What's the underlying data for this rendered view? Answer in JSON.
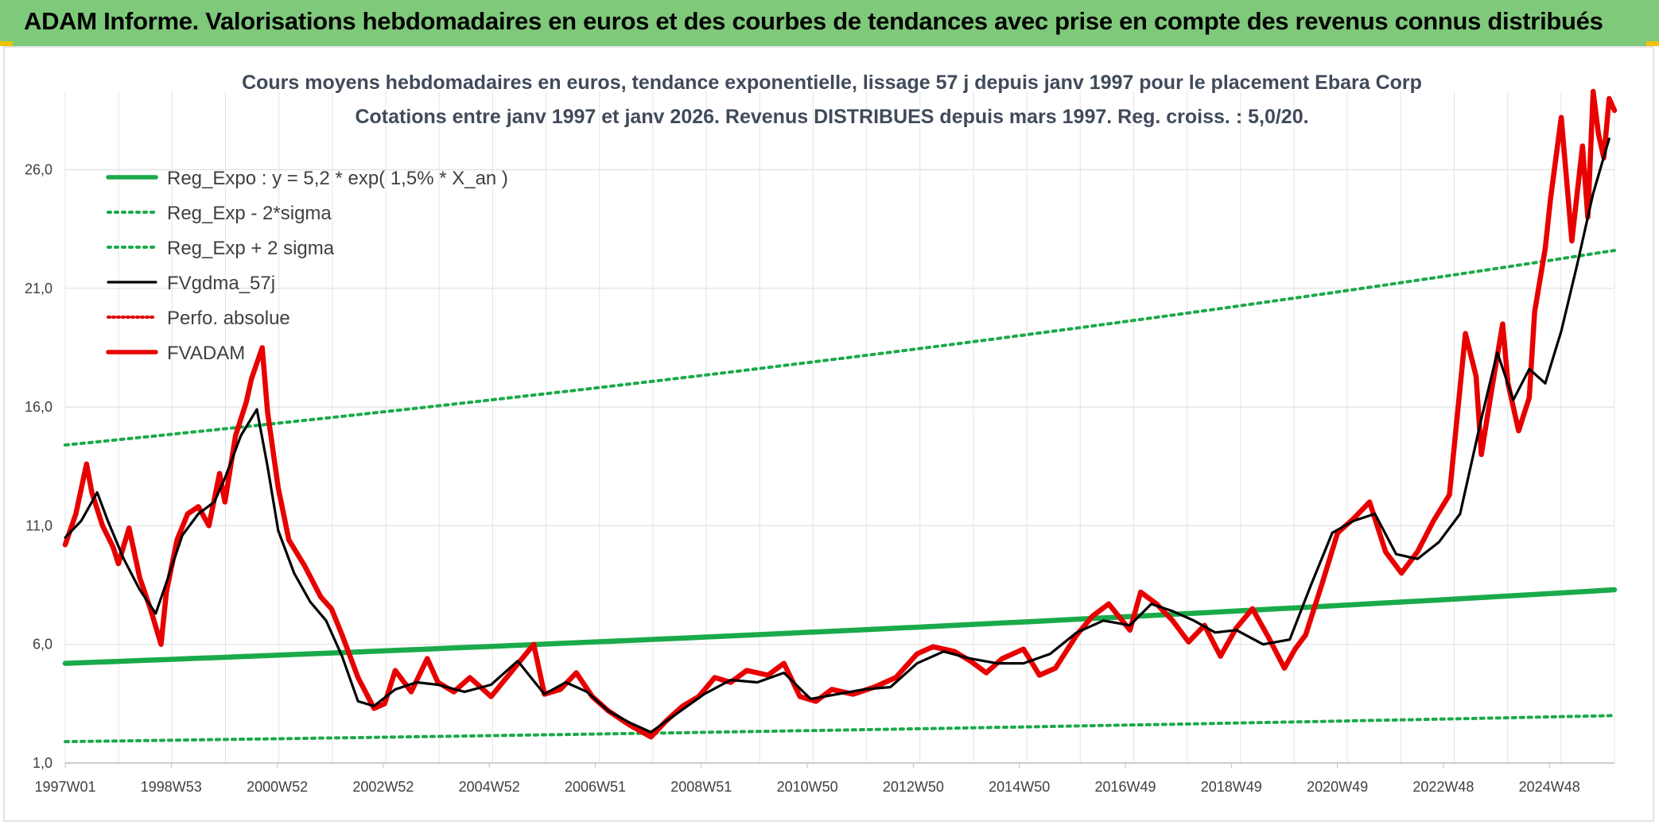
{
  "banner": {
    "text": "ADAM Informe. Valorisations hebdomadaires en euros et des courbes de tendances avec prise en compte des revenus connus distribués",
    "background": "#7fc97a"
  },
  "chart_data": {
    "type": "line",
    "title": "Cours moyens hebdomadaires en euros, tendance exponentielle, lissage 57 j depuis janv 1997 pour le placement Ebara Corp",
    "subtitle": "Cotations entre janv 1997 et janv 2026. Revenus DISTRIBUES depuis mars 1997. Reg. croiss. : 5,0/20.",
    "xlabel": "",
    "ylabel": "",
    "x_tick_labels": [
      "1997W01",
      "1998W53",
      "2000W52",
      "2002W52",
      "2004W52",
      "2006W51",
      "2008W51",
      "2010W50",
      "2012W50",
      "2014W50",
      "2016W49",
      "2018W49",
      "2020W49",
      "2022W48",
      "2024W48"
    ],
    "y_tick_labels": [
      "1,0",
      "6,0",
      "11,0",
      "16,0",
      "21,0",
      "26,0"
    ],
    "y_ticks": [
      1,
      6,
      11,
      16,
      21,
      26
    ],
    "xlim": [
      1997.0,
      2026.1
    ],
    "ylim": [
      1,
      29.3
    ],
    "grid": true,
    "legend_position": "top-left",
    "legend": [
      {
        "label": "Reg_Expo : y = 5,2 * exp( 1,5% *  X_an )",
        "color": "#1aaa4a",
        "style": "solid-thick"
      },
      {
        "label": "Reg_Exp - 2*sigma",
        "color": "#1aaa4a",
        "style": "dotted"
      },
      {
        "label": "Reg_Exp + 2 sigma",
        "color": "#1aaa4a",
        "style": "dotted"
      },
      {
        "label": "FVgdma_57j",
        "color": "#000000",
        "style": "solid"
      },
      {
        "label": "Perfo. absolue",
        "color": "#e00000",
        "style": "dotted"
      },
      {
        "label": "FVADAM",
        "color": "#e80000",
        "style": "solid-thick"
      }
    ],
    "series": [
      {
        "name": "Reg_Expo : y = 5,2 * exp( 1,5% *  X_an )",
        "color": "#1aaa4a",
        "x": [
          1997.0,
          2026.1
        ],
        "y": [
          5.2,
          8.3
        ]
      },
      {
        "name": "Reg_Exp - 2*sigma",
        "color": "#1aaa4a",
        "x": [
          1997.0,
          2026.1
        ],
        "y": [
          1.9,
          3.0
        ]
      },
      {
        "name": "Reg_Exp + 2 sigma",
        "color": "#1aaa4a",
        "x": [
          1997.0,
          2026.1
        ],
        "y": [
          14.4,
          22.6
        ]
      },
      {
        "name": "FVgdma_57j",
        "color": "#000000",
        "x": [
          1997.0,
          1997.3,
          1997.6,
          1997.8,
          1998.1,
          1998.4,
          1998.7,
          1998.9,
          1999.2,
          1999.5,
          1999.8,
          2000.0,
          2000.3,
          2000.6,
          2000.8,
          2001.0,
          2001.3,
          2001.6,
          2001.9,
          2002.2,
          2002.5,
          2002.8,
          2003.2,
          2003.6,
          2004.0,
          2004.5,
          2005.0,
          2005.5,
          2006.0,
          2006.4,
          2006.8,
          2007.2,
          2007.6,
          2008.0,
          2008.5,
          2009.0,
          2009.5,
          2010.0,
          2010.5,
          2011.0,
          2011.5,
          2012.0,
          2012.5,
          2013.0,
          2013.5,
          2014.0,
          2014.5,
          2015.0,
          2015.5,
          2016.0,
          2016.5,
          2017.0,
          2017.4,
          2017.8,
          2018.2,
          2018.6,
          2019.0,
          2019.5,
          2020.0,
          2020.4,
          2020.8,
          2021.2,
          2021.6,
          2022.0,
          2022.4,
          2022.8,
          2023.2,
          2023.6,
          2023.9,
          2024.2,
          2024.5,
          2024.8,
          2025.1,
          2025.4,
          2025.7,
          2026.0
        ],
        "y": [
          10.5,
          11.2,
          12.4,
          11.2,
          9.6,
          8.3,
          7.3,
          8.6,
          10.6,
          11.5,
          12.0,
          13.0,
          14.8,
          15.9,
          13.5,
          10.8,
          9.0,
          7.8,
          7.0,
          5.5,
          3.6,
          3.4,
          4.1,
          4.4,
          4.3,
          4.0,
          4.3,
          5.3,
          3.9,
          4.4,
          4.0,
          3.2,
          2.7,
          2.3,
          3.1,
          3.9,
          4.5,
          4.4,
          4.8,
          3.7,
          3.9,
          4.1,
          4.2,
          5.2,
          5.7,
          5.4,
          5.2,
          5.2,
          5.6,
          6.5,
          7.0,
          6.8,
          7.7,
          7.4,
          7.0,
          6.5,
          6.6,
          6.0,
          6.2,
          8.5,
          10.7,
          11.2,
          11.5,
          9.8,
          9.6,
          10.3,
          11.5,
          15.5,
          18.3,
          16.3,
          17.6,
          17.0,
          19.2,
          22.0,
          25.0,
          27.3
        ]
      },
      {
        "name": "FVADAM",
        "color": "#e80000",
        "x": [
          1997.0,
          1997.2,
          1997.4,
          1997.5,
          1997.7,
          1997.9,
          1998.0,
          1998.2,
          1998.4,
          1998.6,
          1998.8,
          1998.9,
          1999.1,
          1999.3,
          1999.5,
          1999.7,
          1999.9,
          2000.0,
          2000.2,
          2000.4,
          2000.5,
          2000.7,
          2000.8,
          2001.0,
          2001.2,
          2001.5,
          2001.8,
          2002.0,
          2002.2,
          2002.5,
          2002.8,
          2003.0,
          2003.2,
          2003.5,
          2003.8,
          2004.0,
          2004.3,
          2004.6,
          2005.0,
          2005.4,
          2005.8,
          2006.0,
          2006.3,
          2006.6,
          2006.9,
          2007.2,
          2007.6,
          2008.0,
          2008.3,
          2008.6,
          2008.9,
          2009.2,
          2009.5,
          2009.8,
          2010.2,
          2010.5,
          2010.8,
          2011.1,
          2011.4,
          2011.8,
          2012.2,
          2012.6,
          2013.0,
          2013.3,
          2013.7,
          2014.0,
          2014.3,
          2014.6,
          2015.0,
          2015.3,
          2015.6,
          2016.0,
          2016.3,
          2016.6,
          2017.0,
          2017.2,
          2017.5,
          2017.8,
          2018.1,
          2018.4,
          2018.7,
          2019.0,
          2019.3,
          2019.6,
          2019.9,
          2020.1,
          2020.3,
          2020.6,
          2020.9,
          2021.2,
          2021.5,
          2021.8,
          2022.1,
          2022.4,
          2022.7,
          2023.0,
          2023.3,
          2023.5,
          2023.6,
          2023.8,
          2024.0,
          2024.1,
          2024.3,
          2024.5,
          2024.6,
          2024.8,
          2024.9,
          2025.1,
          2025.3,
          2025.5,
          2025.6,
          2025.7,
          2025.8,
          2025.9,
          2026.0,
          2026.1
        ],
        "y": [
          10.2,
          11.5,
          13.6,
          12.4,
          11.0,
          10.1,
          9.4,
          10.9,
          8.8,
          7.5,
          6.0,
          8.2,
          10.4,
          11.5,
          11.8,
          11.0,
          13.2,
          12.0,
          14.8,
          16.2,
          17.2,
          18.5,
          15.8,
          12.6,
          10.4,
          9.3,
          8.0,
          7.5,
          6.4,
          4.6,
          3.3,
          3.5,
          4.9,
          4.0,
          5.4,
          4.4,
          4.0,
          4.6,
          3.8,
          4.9,
          6.0,
          3.9,
          4.1,
          4.8,
          3.8,
          3.2,
          2.6,
          2.1,
          2.8,
          3.4,
          3.8,
          4.6,
          4.4,
          4.9,
          4.7,
          5.2,
          3.8,
          3.6,
          4.1,
          3.9,
          4.2,
          4.6,
          5.6,
          5.9,
          5.7,
          5.3,
          4.8,
          5.4,
          5.8,
          4.7,
          5.0,
          6.4,
          7.2,
          7.7,
          6.6,
          8.2,
          7.7,
          7.0,
          6.1,
          6.8,
          5.5,
          6.7,
          7.5,
          6.3,
          5.0,
          5.8,
          6.4,
          8.5,
          10.7,
          11.3,
          12.0,
          9.9,
          9.0,
          9.9,
          11.2,
          12.3,
          19.1,
          17.3,
          14.0,
          16.8,
          19.5,
          17.0,
          15.0,
          16.4,
          20.0,
          22.7,
          24.8,
          28.2,
          23.0,
          27.0,
          24.0,
          29.3,
          27.5,
          26.5,
          29.0,
          28.5
        ]
      }
    ]
  }
}
